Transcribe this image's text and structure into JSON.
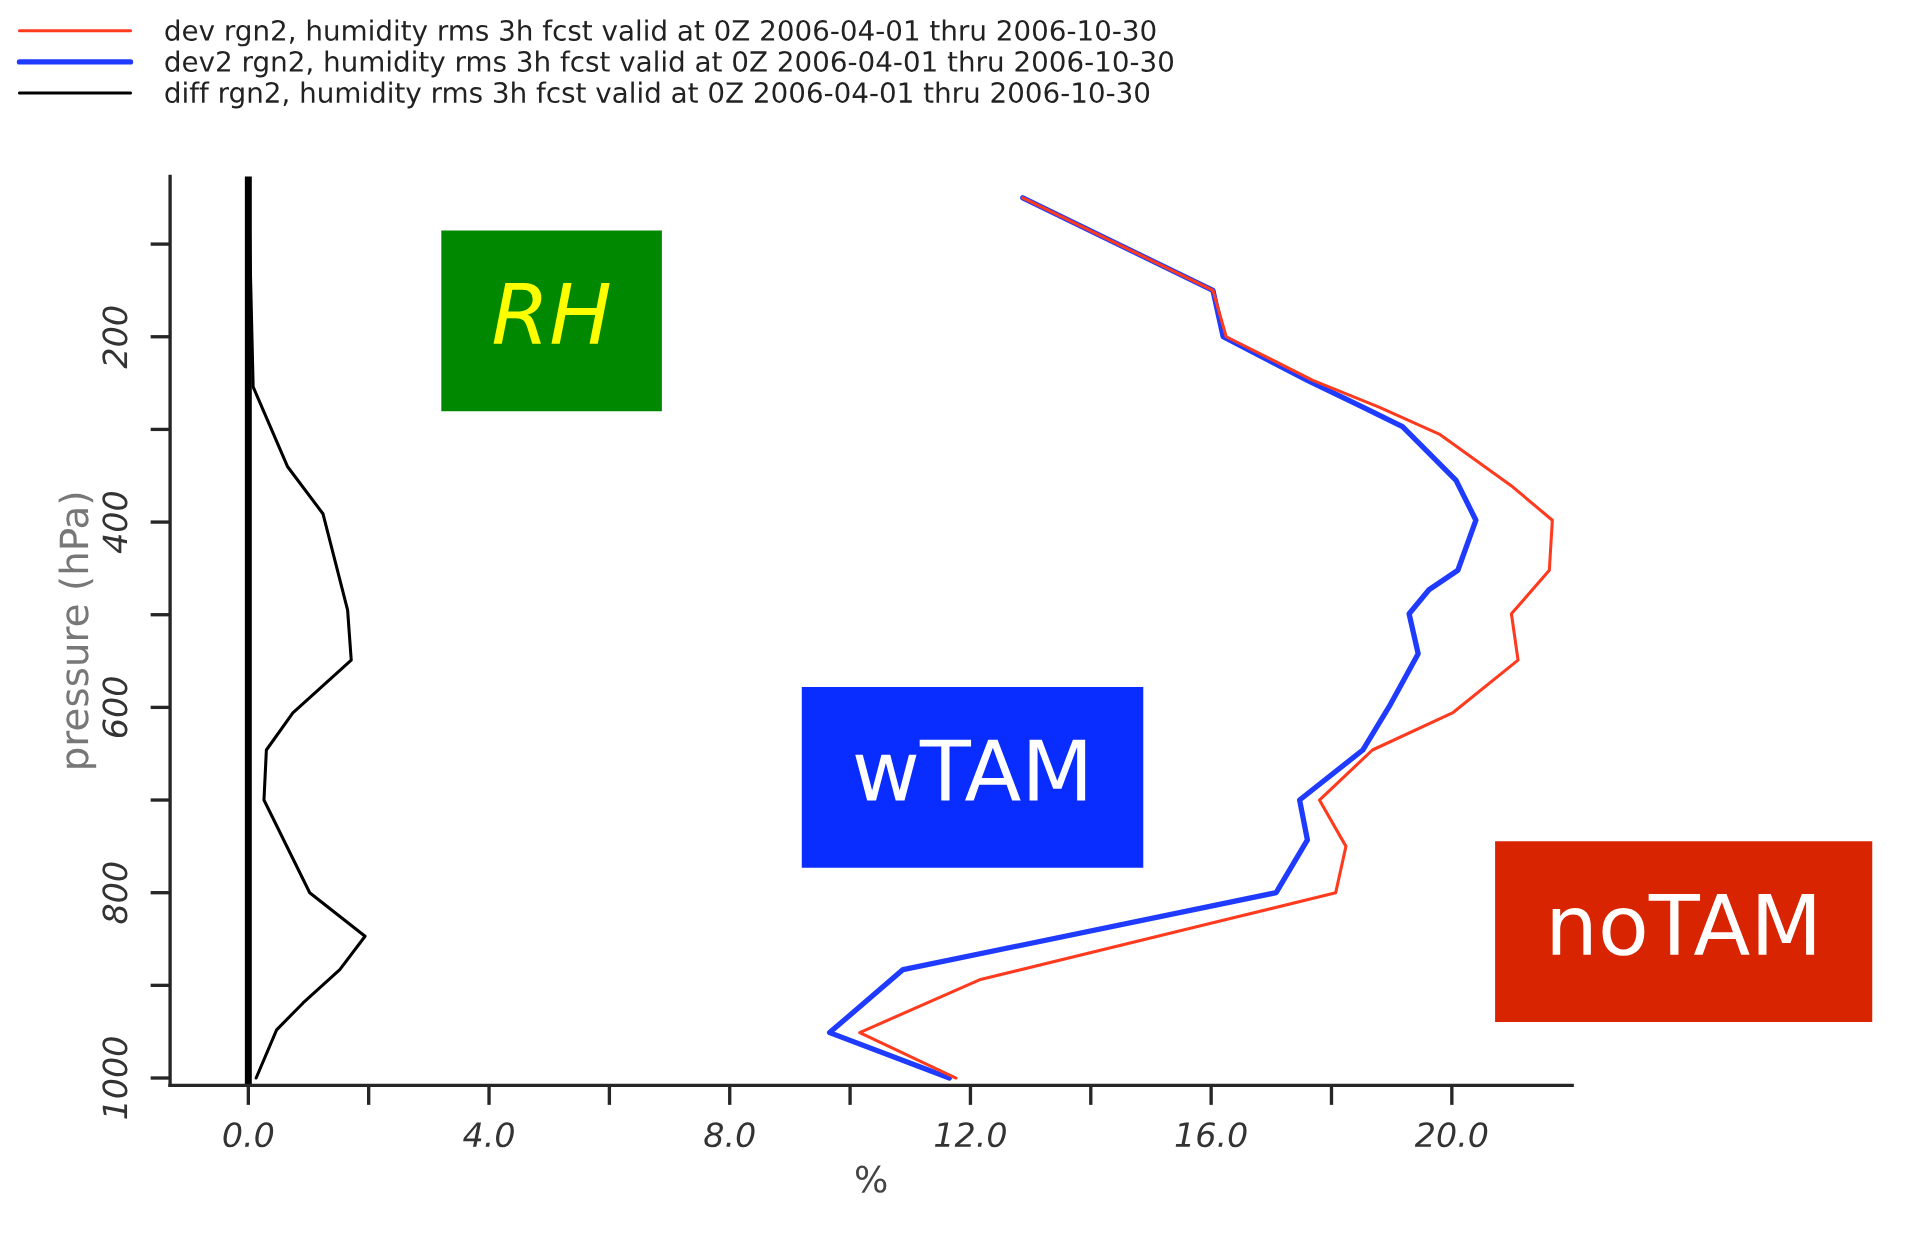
{
  "chart_data": {
    "type": "line",
    "xlabel": "%",
    "ylabel": "pressure (hPa)",
    "xlim": [
      -1.3,
      22.0
    ],
    "ylim": [
      1008,
      27
    ],
    "xticks": [
      {
        "value": 0,
        "label": "0.0"
      },
      {
        "value": 2,
        "label": null
      },
      {
        "value": 4,
        "label": "4.0"
      },
      {
        "value": 6,
        "label": null
      },
      {
        "value": 8,
        "label": "8.0"
      },
      {
        "value": 10,
        "label": null
      },
      {
        "value": 12,
        "label": "12.0"
      },
      {
        "value": 14,
        "label": null
      },
      {
        "value": 16,
        "label": "16.0"
      },
      {
        "value": 18,
        "label": null
      },
      {
        "value": 20,
        "label": "20.0"
      }
    ],
    "yticks": [
      {
        "value": 100,
        "label": null
      },
      200,
      {
        "value": 300,
        "label": null
      },
      400,
      {
        "value": 500,
        "label": null
      },
      600,
      {
        "value": 700,
        "label": null
      },
      800,
      {
        "value": 900,
        "label": null
      },
      1000
    ],
    "grid": false,
    "legend": "top left",
    "marker": "none",
    "line_style": "solid",
    "series": [
      {
        "name": "dev rgn2, humidity rms 3h fcst valid at 0Z 2006-04-01 thru 2006-10-30",
        "color": "#ff3b1f",
        "x": [
          12.87,
          16.03,
          16.25,
          17.69,
          18.79,
          19.79,
          21.01,
          21.67,
          21.62,
          20.99,
          21.1,
          20.01,
          18.68,
          17.8,
          18.24,
          18.07,
          16.25,
          12.15,
          10.16,
          11.76
        ],
        "values": [
          50,
          150,
          200,
          247,
          276,
          305,
          362,
          398,
          452,
          499,
          549,
          606,
          646,
          700,
          750,
          800,
          829,
          894,
          951,
          1000
        ]
      },
      {
        "name": "dev2 rgn2, humidity rms 3h fcst valid at 0Z 2006-04-01 thru 2006-10-30",
        "color": "#1f3bff",
        "x": [
          12.87,
          16.03,
          16.2,
          17.6,
          18.52,
          19.18,
          20.07,
          20.4,
          20.1,
          19.62,
          19.29,
          19.44,
          18.96,
          18.52,
          17.47,
          17.6,
          17.08,
          10.88,
          9.66,
          11.65
        ],
        "values": [
          50,
          150,
          200,
          247,
          276,
          297,
          355,
          398,
          452,
          473,
          499,
          542,
          599,
          646,
          700,
          743,
          800,
          883,
          951,
          1000
        ]
      },
      {
        "name": "diff rgn2, humidity rms 3h fcst valid at 0Z 2006-04-01 thru 2006-10-30",
        "color": "#000000",
        "x": [
          0,
          0.08,
          0.65,
          1.24,
          1.65,
          1.71,
          0.74,
          0.3,
          0.26,
          1.02,
          1.94,
          1.52,
          0.91,
          0.47,
          0.13
        ],
        "values": [
          35,
          254,
          340,
          391,
          495,
          549,
          606,
          646,
          700,
          800,
          847,
          883,
          919,
          948,
          1000
        ]
      }
    ],
    "ref_lines": [
      {
        "axis": "x",
        "value": 0,
        "color": "#000000"
      }
    ],
    "annotations": [
      "RH",
      "wTAM",
      "noTAM"
    ]
  }
}
